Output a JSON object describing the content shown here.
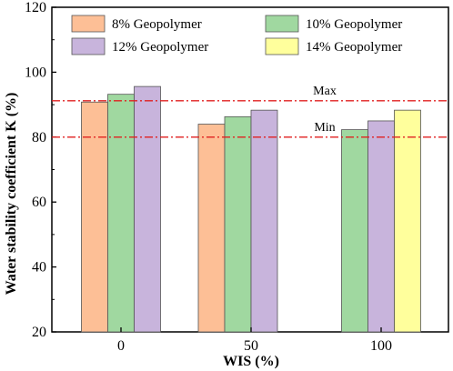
{
  "chart_data": {
    "type": "bar",
    "xlabel": "WIS (%)",
    "ylabel": "Water stability coefficient K (%)",
    "categories": [
      "0",
      "50",
      "100"
    ],
    "ylim": [
      20,
      120
    ],
    "yticks": [
      20,
      40,
      60,
      80,
      100,
      120
    ],
    "series": [
      {
        "name": "8% Geopolymer",
        "color": "#fdbf96",
        "values": [
          90.8,
          84.0,
          null
        ]
      },
      {
        "name": "10% Geopolymer",
        "color": "#a0d8a0",
        "values": [
          93.2,
          86.3,
          82.3
        ]
      },
      {
        "name": "12% Geopolymer",
        "color": "#c8b4dc",
        "values": [
          95.6,
          88.3,
          85.0
        ]
      },
      {
        "name": "14% Geopolymer",
        "color": "#ffff9c",
        "values": [
          null,
          null,
          88.3
        ]
      }
    ],
    "reference_lines": [
      {
        "label": "Max",
        "value": 91.2,
        "color": "#e02020"
      },
      {
        "label": "Min",
        "value": 80.0,
        "color": "#e02020"
      }
    ],
    "legend_position": "top"
  }
}
